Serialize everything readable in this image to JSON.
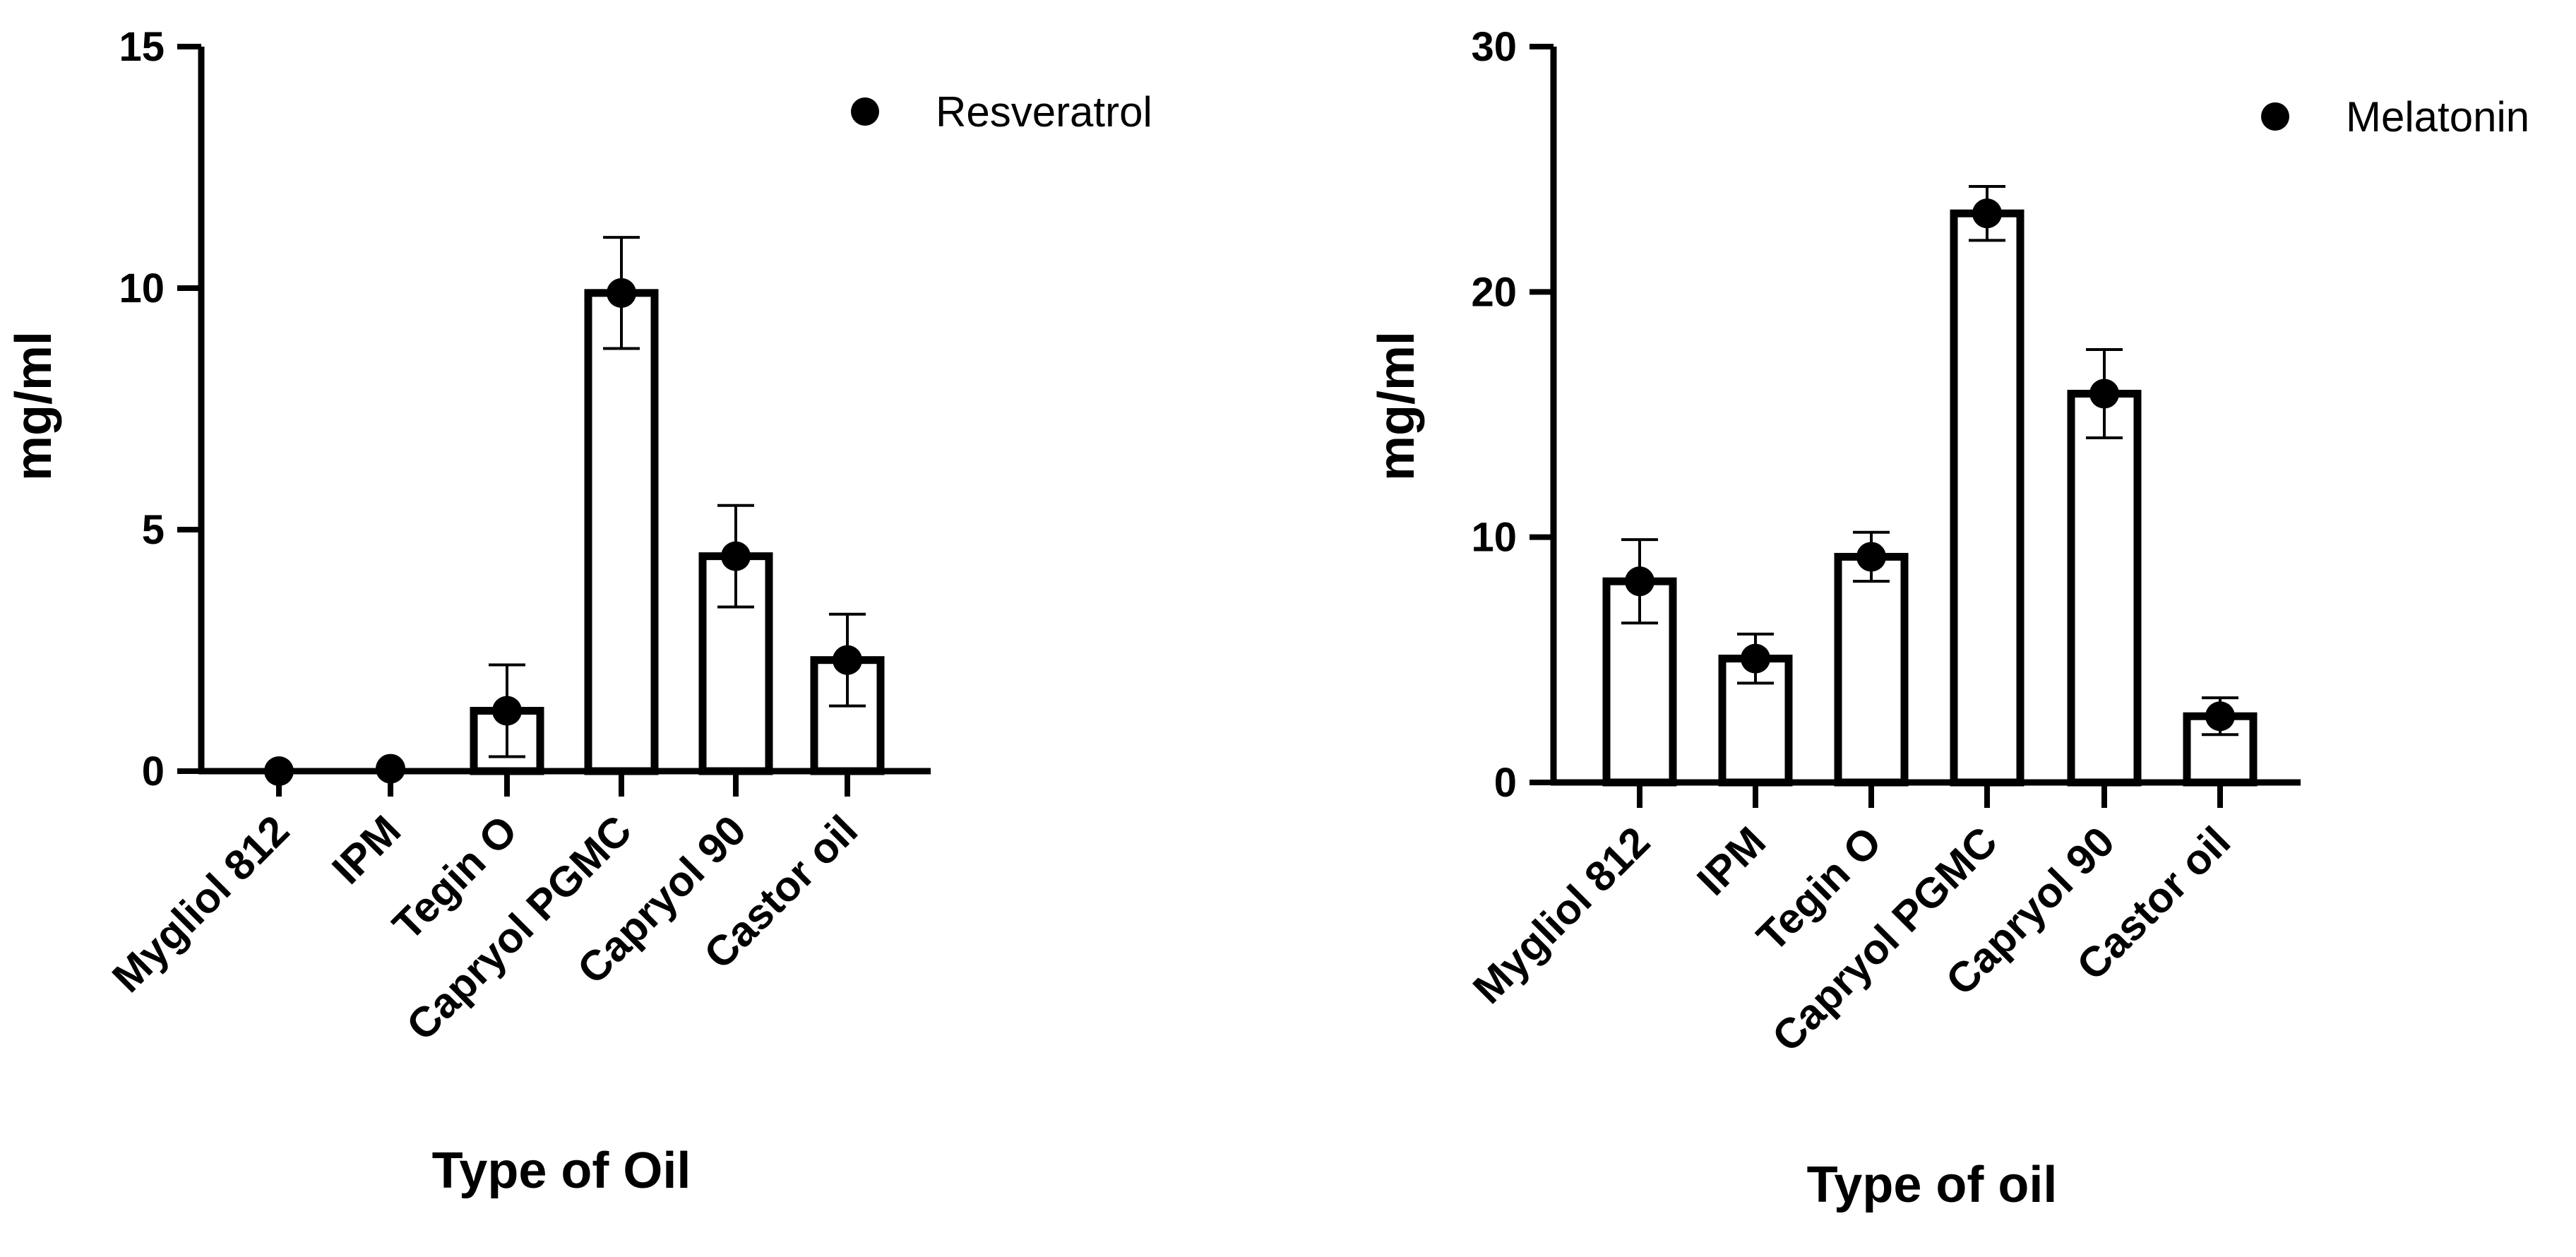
{
  "chart_data": [
    {
      "type": "bar",
      "categories": [
        "Mygliol 812",
        "IPM",
        "Tegin O",
        "Capryol PGMC",
        "Capryol 90",
        "Castor oil"
      ],
      "series": [
        {
          "name": "Resveratrol",
          "values": [
            0.0,
            0.05,
            1.25,
            9.9,
            4.45,
            2.3
          ],
          "errors": [
            0.0,
            0.0,
            0.95,
            1.15,
            1.05,
            0.95
          ]
        }
      ],
      "xlabel": "Type of Oil",
      "ylabel": "mg/ml",
      "ylim": [
        0,
        15
      ],
      "yticks": [
        0,
        5,
        10,
        15
      ],
      "legend": "top-right",
      "grid": false
    },
    {
      "type": "bar",
      "categories": [
        "Mygliol 812",
        "IPM",
        "Tegin O",
        "Capryol PGMC",
        "Capryol 90",
        "Castor oil"
      ],
      "series": [
        {
          "name": "Melatonin",
          "values": [
            8.2,
            5.05,
            9.2,
            23.2,
            15.85,
            2.7
          ],
          "errors": [
            1.7,
            1.0,
            1.0,
            1.1,
            1.8,
            0.75
          ]
        }
      ],
      "xlabel": "Type of oil",
      "ylabel": "mg/ml",
      "ylim": [
        0,
        30
      ],
      "yticks": [
        0,
        10,
        20,
        30
      ],
      "legend": "top-right",
      "grid": false
    }
  ]
}
